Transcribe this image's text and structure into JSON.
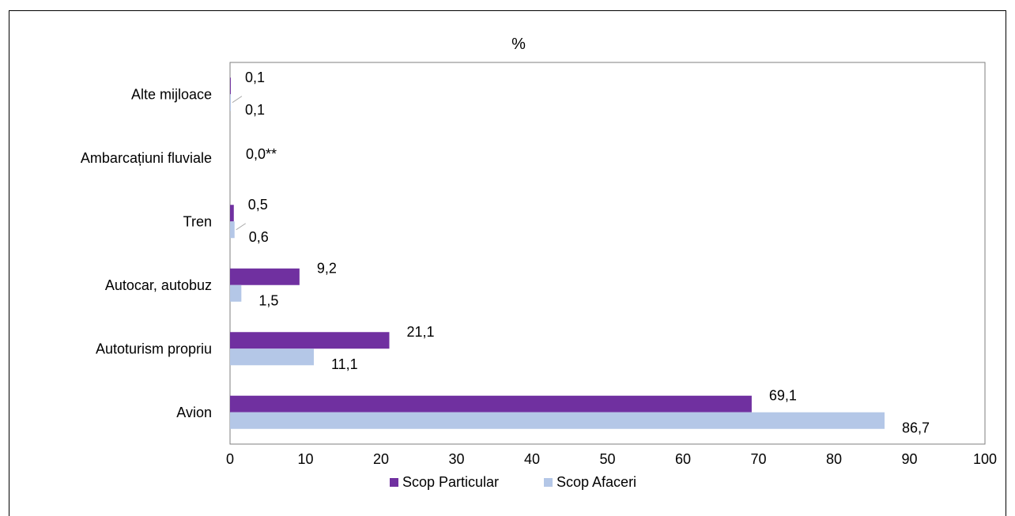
{
  "chart_data": {
    "type": "bar",
    "orientation": "horizontal",
    "title": "%",
    "categories": [
      "Avion",
      "Autoturism propriu",
      "Autocar, autobuz",
      "Tren",
      "Ambarcațiuni fluviale",
      "Alte mijloace"
    ],
    "series": [
      {
        "name": "Scop Particular",
        "color": "#7030A0",
        "values": [
          69.1,
          21.1,
          9.2,
          0.5,
          0.0,
          0.1
        ],
        "labels": [
          "69,1",
          "21,1",
          "9,2",
          "0,5",
          "",
          "0,1"
        ]
      },
      {
        "name": "Scop Afaceri",
        "color": "#B4C7E7",
        "values": [
          86.7,
          11.1,
          1.5,
          0.6,
          0.0,
          0.1
        ],
        "labels": [
          "86,7",
          "11,1",
          "1,5",
          "0,6",
          "",
          "0,1"
        ]
      }
    ],
    "special_labels": [
      {
        "category": "Ambarcațiuni fluviale",
        "text": "0,0**"
      }
    ],
    "xlim": [
      0,
      100
    ],
    "xticks": [
      0,
      10,
      20,
      30,
      40,
      50,
      60,
      70,
      80,
      90,
      100
    ],
    "grid": false,
    "legend_position": "bottom"
  }
}
